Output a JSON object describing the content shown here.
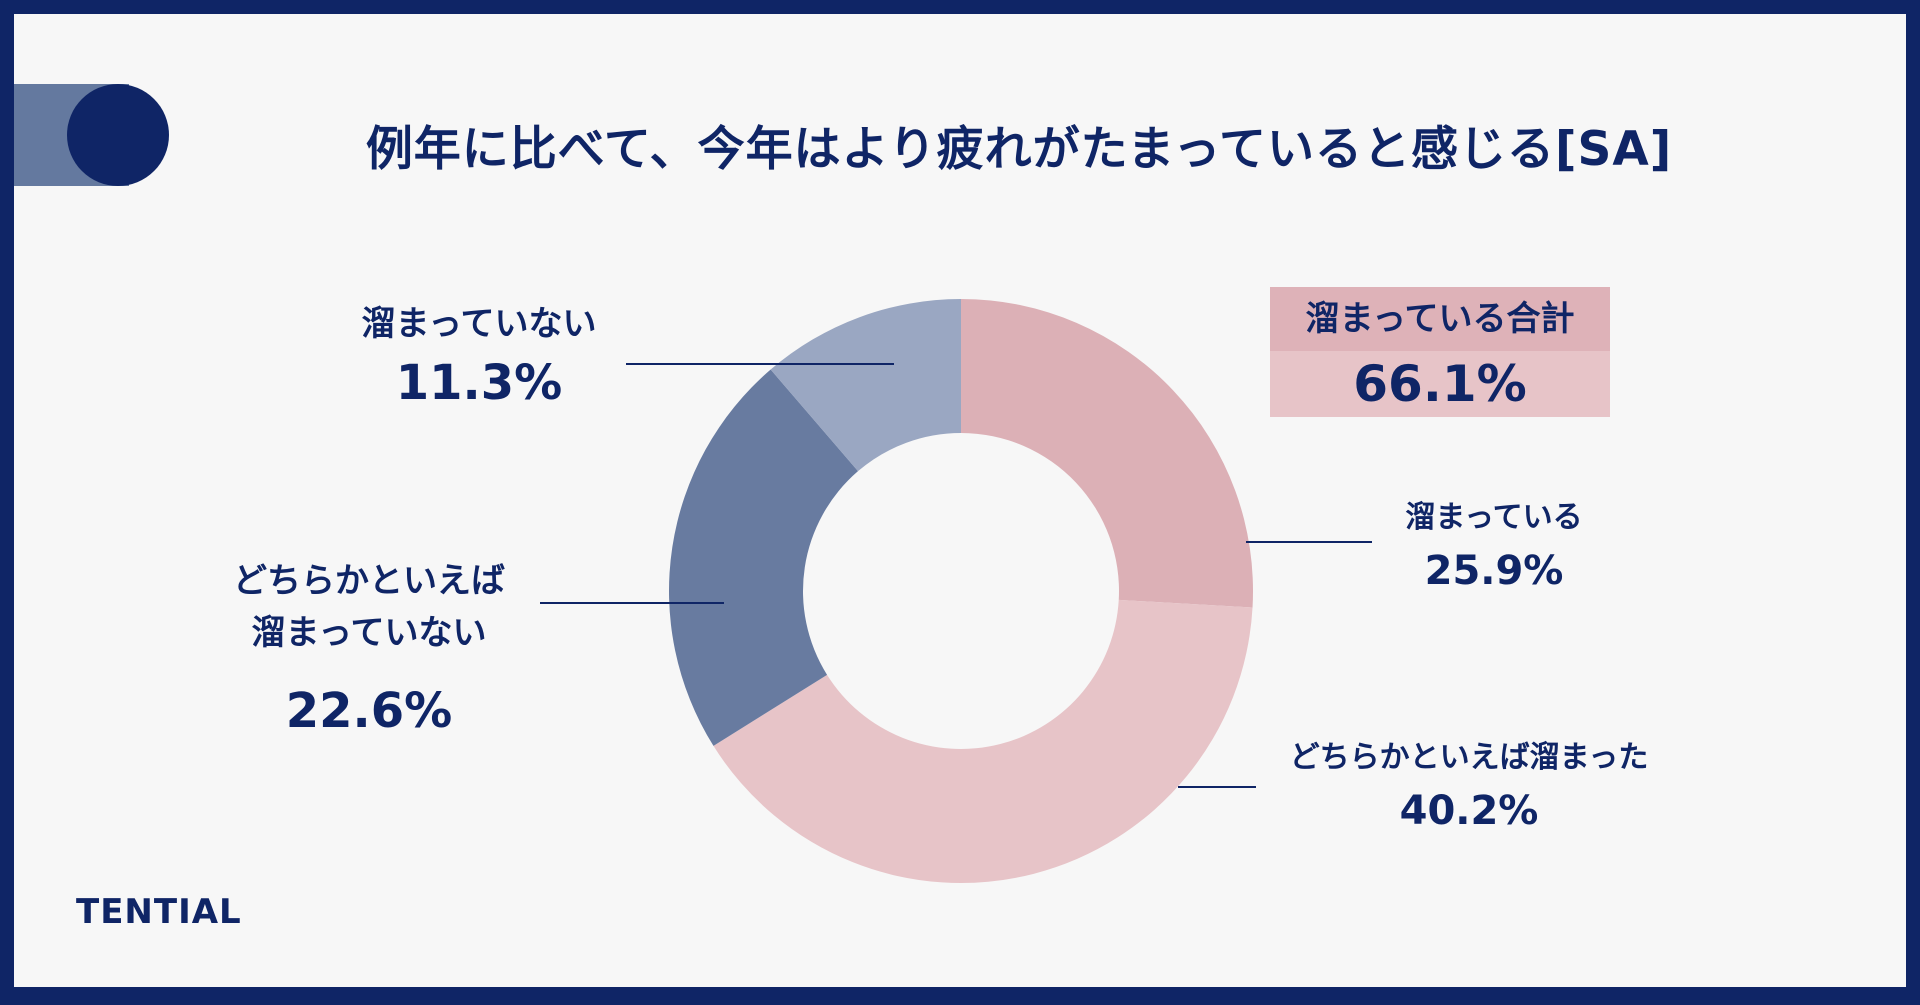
{
  "title": "例年に比べて、今年はより疲れがたまっていると感じる[SA]",
  "brand": "TENTIAL",
  "total": {
    "label": "溜まっている合計",
    "value": "66.1%"
  },
  "labels": [
    {
      "name": "溜まっている",
      "pct": "25.9%"
    },
    {
      "name": "どちらかといえば溜まった",
      "pct": "40.2%"
    },
    {
      "name": "どちらかといえば\n溜まっていない",
      "pct": "22.6%"
    },
    {
      "name": "溜まっていない",
      "pct": "11.3%"
    }
  ],
  "chart_data": {
    "type": "pie",
    "donut": true,
    "categories": [
      "溜まっている",
      "どちらかといえば溜まった",
      "どちらかといえば溜まっていない",
      "溜まっていない"
    ],
    "values": [
      25.9,
      40.2,
      22.6,
      11.3
    ],
    "colors": [
      "#dcb0b6",
      "#e7c4c8",
      "#687ba0",
      "#9aa7c2"
    ],
    "title": "例年に比べて、今年はより疲れがたまっていると感じる[SA]"
  }
}
